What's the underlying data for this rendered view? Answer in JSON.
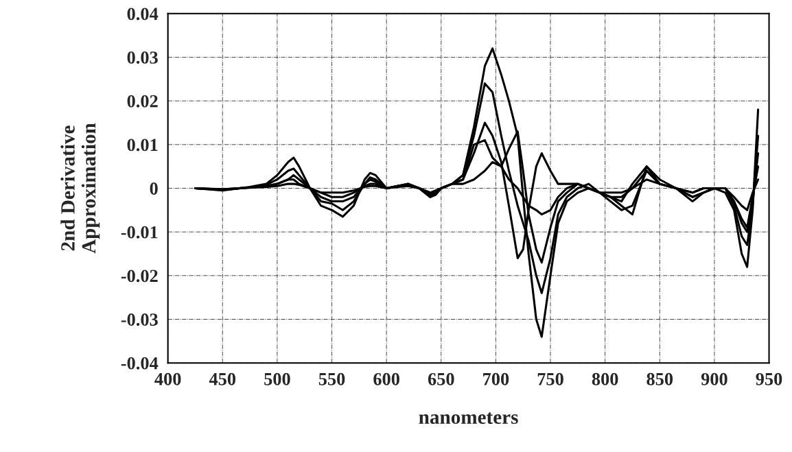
{
  "chart_data": {
    "type": "line",
    "xlabel": "nanometers",
    "ylabel": "2nd Derivative\nApproximation",
    "x": [
      425,
      450,
      475,
      490,
      500,
      510,
      515,
      520,
      530,
      540,
      550,
      560,
      570,
      580,
      585,
      590,
      600,
      610,
      620,
      630,
      640,
      645,
      650,
      660,
      670,
      680,
      690,
      697,
      705,
      712,
      720,
      725,
      730,
      737,
      742,
      750,
      757,
      765,
      775,
      785,
      795,
      805,
      815,
      825,
      838,
      850,
      865,
      880,
      890,
      900,
      910,
      918,
      925,
      930,
      935,
      940
    ],
    "series": [
      {
        "color": "#000000",
        "values": [
          0,
          -0.0005,
          0.0003,
          0.001,
          0.003,
          0.006,
          0.007,
          0.005,
          0,
          -0.004,
          -0.005,
          -0.0065,
          -0.004,
          0.002,
          0.0035,
          0.003,
          0,
          0.0005,
          0.001,
          0,
          -0.002,
          -0.0015,
          0,
          0.001,
          0.003,
          0.014,
          0.028,
          0.032,
          0.026,
          0.02,
          0.012,
          -0.002,
          -0.015,
          -0.03,
          -0.034,
          -0.02,
          -0.008,
          -0.003,
          -0.001,
          0,
          -0.001,
          -0.002,
          -0.004,
          -0.006,
          0.005,
          0.002,
          0,
          -0.003,
          -0.001,
          0,
          -0.001,
          -0.005,
          -0.015,
          -0.018,
          -0.005,
          0.018
        ]
      },
      {
        "color": "#000000",
        "values": [
          0,
          -0.0004,
          0.0002,
          0.0008,
          0.002,
          0.004,
          0.0045,
          0.003,
          0,
          -0.003,
          -0.0035,
          -0.005,
          -0.003,
          0.001,
          0.0025,
          0.002,
          0,
          0.0005,
          0.001,
          0,
          -0.002,
          -0.001,
          0,
          0.001,
          0.003,
          0.012,
          0.024,
          0.022,
          0.012,
          0.004,
          -0.004,
          -0.008,
          -0.012,
          -0.02,
          -0.024,
          -0.016,
          -0.006,
          -0.002,
          0,
          0.001,
          -0.001,
          -0.003,
          -0.005,
          -0.004,
          0.004,
          0.001,
          0,
          -0.002,
          -0.001,
          0,
          0,
          -0.004,
          -0.011,
          -0.013,
          -0.004,
          0.012
        ]
      },
      {
        "color": "#000000",
        "values": [
          0,
          -0.0003,
          0.0002,
          0.0005,
          0.001,
          0.002,
          0.003,
          0.002,
          0,
          -0.002,
          -0.003,
          -0.003,
          -0.002,
          0.001,
          0.002,
          0.0015,
          0,
          0.0005,
          0.0008,
          0,
          -0.0015,
          -0.001,
          0,
          0.001,
          0.002,
          0.008,
          0.015,
          0.012,
          0.006,
          -0.004,
          -0.016,
          -0.014,
          -0.005,
          0.005,
          0.008,
          0.004,
          0.001,
          0.001,
          0.001,
          0,
          -0.001,
          -0.002,
          -0.003,
          0.001,
          0.005,
          0.001,
          0,
          -0.002,
          -0.001,
          0,
          0,
          -0.003,
          -0.008,
          -0.01,
          -0.003,
          0.008
        ]
      },
      {
        "color": "#000000",
        "values": [
          0,
          -0.0003,
          0.0002,
          0.0005,
          0.001,
          0.002,
          0.002,
          0.001,
          0,
          -0.001,
          -0.002,
          -0.002,
          -0.001,
          0.0005,
          0.001,
          0.001,
          0,
          0.0004,
          0.0006,
          0,
          -0.001,
          -0.001,
          0,
          0.001,
          0.002,
          0.01,
          0.011,
          0.007,
          0.005,
          0.009,
          0.013,
          0.004,
          -0.006,
          -0.014,
          -0.017,
          -0.009,
          -0.003,
          -0.001,
          0.001,
          0,
          -0.001,
          -0.002,
          -0.002,
          0,
          0.004,
          0.001,
          0,
          -0.001,
          0,
          0,
          0,
          -0.003,
          -0.007,
          -0.009,
          -0.002,
          0.005
        ]
      },
      {
        "color": "#000000",
        "values": [
          0,
          -0.0002,
          0.0001,
          0.0003,
          0.0005,
          0.001,
          0.001,
          0.0008,
          0,
          -0.001,
          -0.001,
          -0.001,
          -0.0005,
          0.0003,
          0.0005,
          0.0005,
          0,
          0.0003,
          0.0005,
          0,
          -0.001,
          -0.0005,
          0,
          0.001,
          0.001,
          0.002,
          0.004,
          0.006,
          0.005,
          0.002,
          0,
          -0.002,
          -0.004,
          -0.005,
          -0.006,
          -0.005,
          -0.002,
          0,
          0.001,
          0,
          -0.001,
          -0.001,
          -0.001,
          0,
          0.002,
          0.001,
          0,
          -0.001,
          0,
          0,
          0,
          -0.002,
          -0.004,
          -0.005,
          -0.001,
          0.002
        ]
      }
    ],
    "xlim": [
      400,
      950
    ],
    "xticks": [
      400,
      450,
      500,
      550,
      600,
      650,
      700,
      750,
      800,
      850,
      900,
      950
    ],
    "ylim": [
      -0.04,
      0.04
    ],
    "yticks": [
      -0.04,
      -0.03,
      -0.02,
      -0.01,
      0,
      0.01,
      0.02,
      0.03,
      0.04
    ],
    "grid": true,
    "marker": "none",
    "line_style": "solid"
  }
}
